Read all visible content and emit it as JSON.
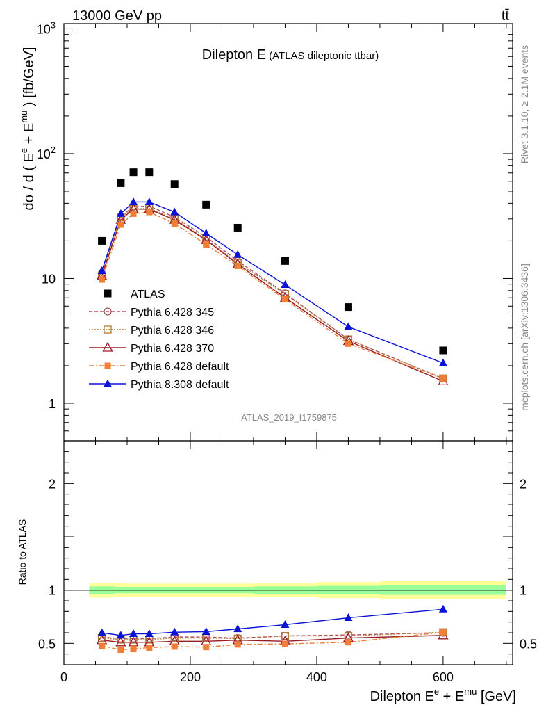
{
  "header": {
    "left": "13000 GeV pp",
    "right": "tt̄"
  },
  "side": {
    "rivet": "Rivet 3.1.10, ≥ 2.1M events",
    "mcplots": "mcplots.cern.ch [arXiv:1306.3436]"
  },
  "chart_data": {
    "type": "line",
    "title_main": "Dilepton E",
    "title_sub": "(ATLAS dileptonic ttbar)",
    "analysis_label": "ATLAS_2019_I1759875",
    "x_label": {
      "base": "Dilepton E",
      "sup1": "e",
      "mid": " + E",
      "sup2": "mu",
      "unit": " [GeV]"
    },
    "y_label": {
      "lead": "dσ / d ( E",
      "sup1": "e",
      "mid": " + E",
      "sup2": "mu",
      "tail": " ) [fb/GeV]"
    },
    "ratio_label": "Ratio to ATLAS",
    "x_range": [
      0,
      710
    ],
    "y_range_log": [
      0.5,
      1100
    ],
    "ratio_range": [
      0.3,
      2.4
    ],
    "x_ticks": [
      0,
      200,
      400,
      600
    ],
    "x_tick_labels": [
      "0",
      "200",
      "400",
      "600"
    ],
    "y_ticks": [
      {
        "v": 1,
        "label": "1",
        "sup": ""
      },
      {
        "v": 10,
        "label": "10",
        "sup": ""
      },
      {
        "v": 100,
        "label": "10",
        "sup": "2"
      },
      {
        "v": 1000,
        "label": "10",
        "sup": "3"
      }
    ],
    "ratio_ticks": [
      {
        "v": 0.5,
        "label": "0.5"
      },
      {
        "v": 1,
        "label": "1"
      },
      {
        "v": 2,
        "label": "2"
      }
    ],
    "x": [
      60,
      90,
      110,
      135,
      175,
      225,
      275,
      350,
      450,
      600
    ],
    "band": [
      {
        "x0": 40,
        "x1": 80,
        "inner": 0.035,
        "outer": 0.07
      },
      {
        "x0": 80,
        "x1": 100,
        "inner": 0.03,
        "outer": 0.065
      },
      {
        "x0": 100,
        "x1": 150,
        "inner": 0.03,
        "outer": 0.06
      },
      {
        "x0": 150,
        "x1": 200,
        "inner": 0.03,
        "outer": 0.06
      },
      {
        "x0": 200,
        "x1": 250,
        "inner": 0.03,
        "outer": 0.06
      },
      {
        "x0": 250,
        "x1": 300,
        "inner": 0.03,
        "outer": 0.06
      },
      {
        "x0": 300,
        "x1": 400,
        "inner": 0.035,
        "outer": 0.065
      },
      {
        "x0": 400,
        "x1": 500,
        "inner": 0.04,
        "outer": 0.075
      },
      {
        "x0": 500,
        "x1": 700,
        "inner": 0.045,
        "outer": 0.085
      }
    ],
    "series": [
      {
        "name": "ATLAS",
        "marker": "square-filled",
        "color": "#000000",
        "dash": "none",
        "values": [
          20,
          58,
          71,
          71,
          57,
          39,
          25.5,
          13.8,
          5.9,
          2.65
        ]
      },
      {
        "name": "Pythia 6.428 345",
        "marker": "circle-open",
        "color": "#b5505a",
        "dash": "5,3",
        "values": [
          11.0,
          31.5,
          37.5,
          38.0,
          31.0,
          21.5,
          13.8,
          7.6,
          3.25,
          1.58
        ]
      },
      {
        "name": "Pythia 6.428 346",
        "marker": "square-open",
        "color": "#b07a3a",
        "dash": "2,2",
        "values": [
          10.5,
          31.0,
          36.0,
          36.5,
          30.0,
          20.6,
          13.3,
          7.5,
          3.25,
          1.58
        ]
      },
      {
        "name": "Pythia 6.428 370",
        "marker": "triangle-open",
        "color": "#9a1a22",
        "dash": "none",
        "values": [
          10.5,
          29.5,
          36.0,
          35.8,
          29.5,
          20.3,
          13.0,
          7.0,
          3.15,
          1.5
        ]
      },
      {
        "name": "Pythia 6.428 default",
        "marker": "square-filled-small",
        "color": "#f07f35",
        "dash": "7,3,2,3",
        "values": [
          9.8,
          27.0,
          33.0,
          34.0,
          27.5,
          18.7,
          12.6,
          6.8,
          3.0,
          1.58
        ]
      },
      {
        "name": "Pythia 8.308 default",
        "marker": "triangle-filled",
        "color": "#0a12d6",
        "dash": "none",
        "values": [
          11.5,
          33.0,
          41.0,
          41.0,
          34.0,
          23.0,
          15.5,
          8.9,
          4.1,
          2.1
        ]
      }
    ],
    "ratios": [
      {
        "name": "Pythia 6.428 345",
        "values": [
          0.56,
          0.545,
          0.545,
          0.545,
          0.56,
          0.56,
          0.55,
          0.57,
          0.58,
          0.6
        ]
      },
      {
        "name": "Pythia 6.428 346",
        "values": [
          0.55,
          0.535,
          0.535,
          0.535,
          0.55,
          0.55,
          0.545,
          0.57,
          0.57,
          0.605
        ]
      },
      {
        "name": "Pythia 6.428 370",
        "values": [
          0.53,
          0.51,
          0.51,
          0.51,
          0.52,
          0.52,
          0.53,
          0.52,
          0.55,
          0.575
        ]
      },
      {
        "name": "Pythia 6.428 default",
        "values": [
          0.475,
          0.44,
          0.45,
          0.46,
          0.47,
          0.465,
          0.49,
          0.495,
          0.51,
          0.605
        ]
      },
      {
        "name": "Pythia 8.308 default",
        "values": [
          0.6,
          0.575,
          0.59,
          0.59,
          0.605,
          0.61,
          0.635,
          0.675,
          0.74,
          0.82
        ]
      }
    ]
  }
}
